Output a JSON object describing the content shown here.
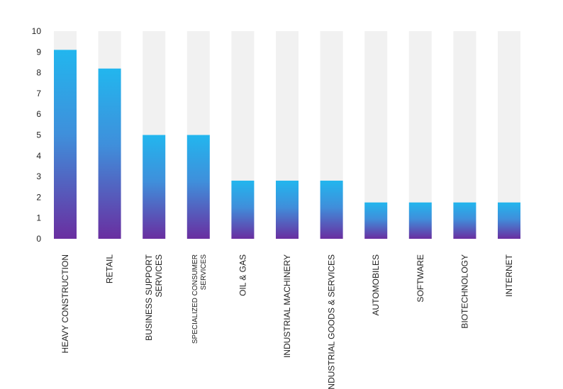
{
  "colors": {
    "track": "#f1f1f1",
    "gradient_top": "#22b6ee",
    "gradient_bottom": "#6a2ea0"
  },
  "chart_data": {
    "type": "bar",
    "orientation": "vertical",
    "categories": [
      [
        "HEAVY CONSTRUCTION"
      ],
      [
        "RETAIL"
      ],
      [
        "BUSINESS SUPPORT",
        "SERVICES"
      ],
      [
        "SPECIALIZED CONSUMER",
        "SERVICES"
      ],
      [
        "OIL & GAS"
      ],
      [
        "INDUSTRIAL MACHINERY"
      ],
      [
        "INDUSTRIAL GOODS & SERVICES"
      ],
      [
        "AUTOMOBILES"
      ],
      [
        "SOFTWARE"
      ],
      [
        "BIOTECHNOLOGY"
      ],
      [
        "INTERNET"
      ]
    ],
    "values": [
      9.1,
      8.2,
      5.0,
      5.0,
      2.8,
      2.8,
      2.8,
      1.75,
      1.75,
      1.75,
      1.75
    ],
    "ylim": [
      0,
      10
    ],
    "yticks": [
      "0",
      "1",
      "2",
      "3",
      "4",
      "5",
      "6",
      "7",
      "8",
      "9",
      "10"
    ],
    "background_track": true,
    "grid": false,
    "legend": "none",
    "title": "",
    "xlabel": "",
    "ylabel": ""
  }
}
